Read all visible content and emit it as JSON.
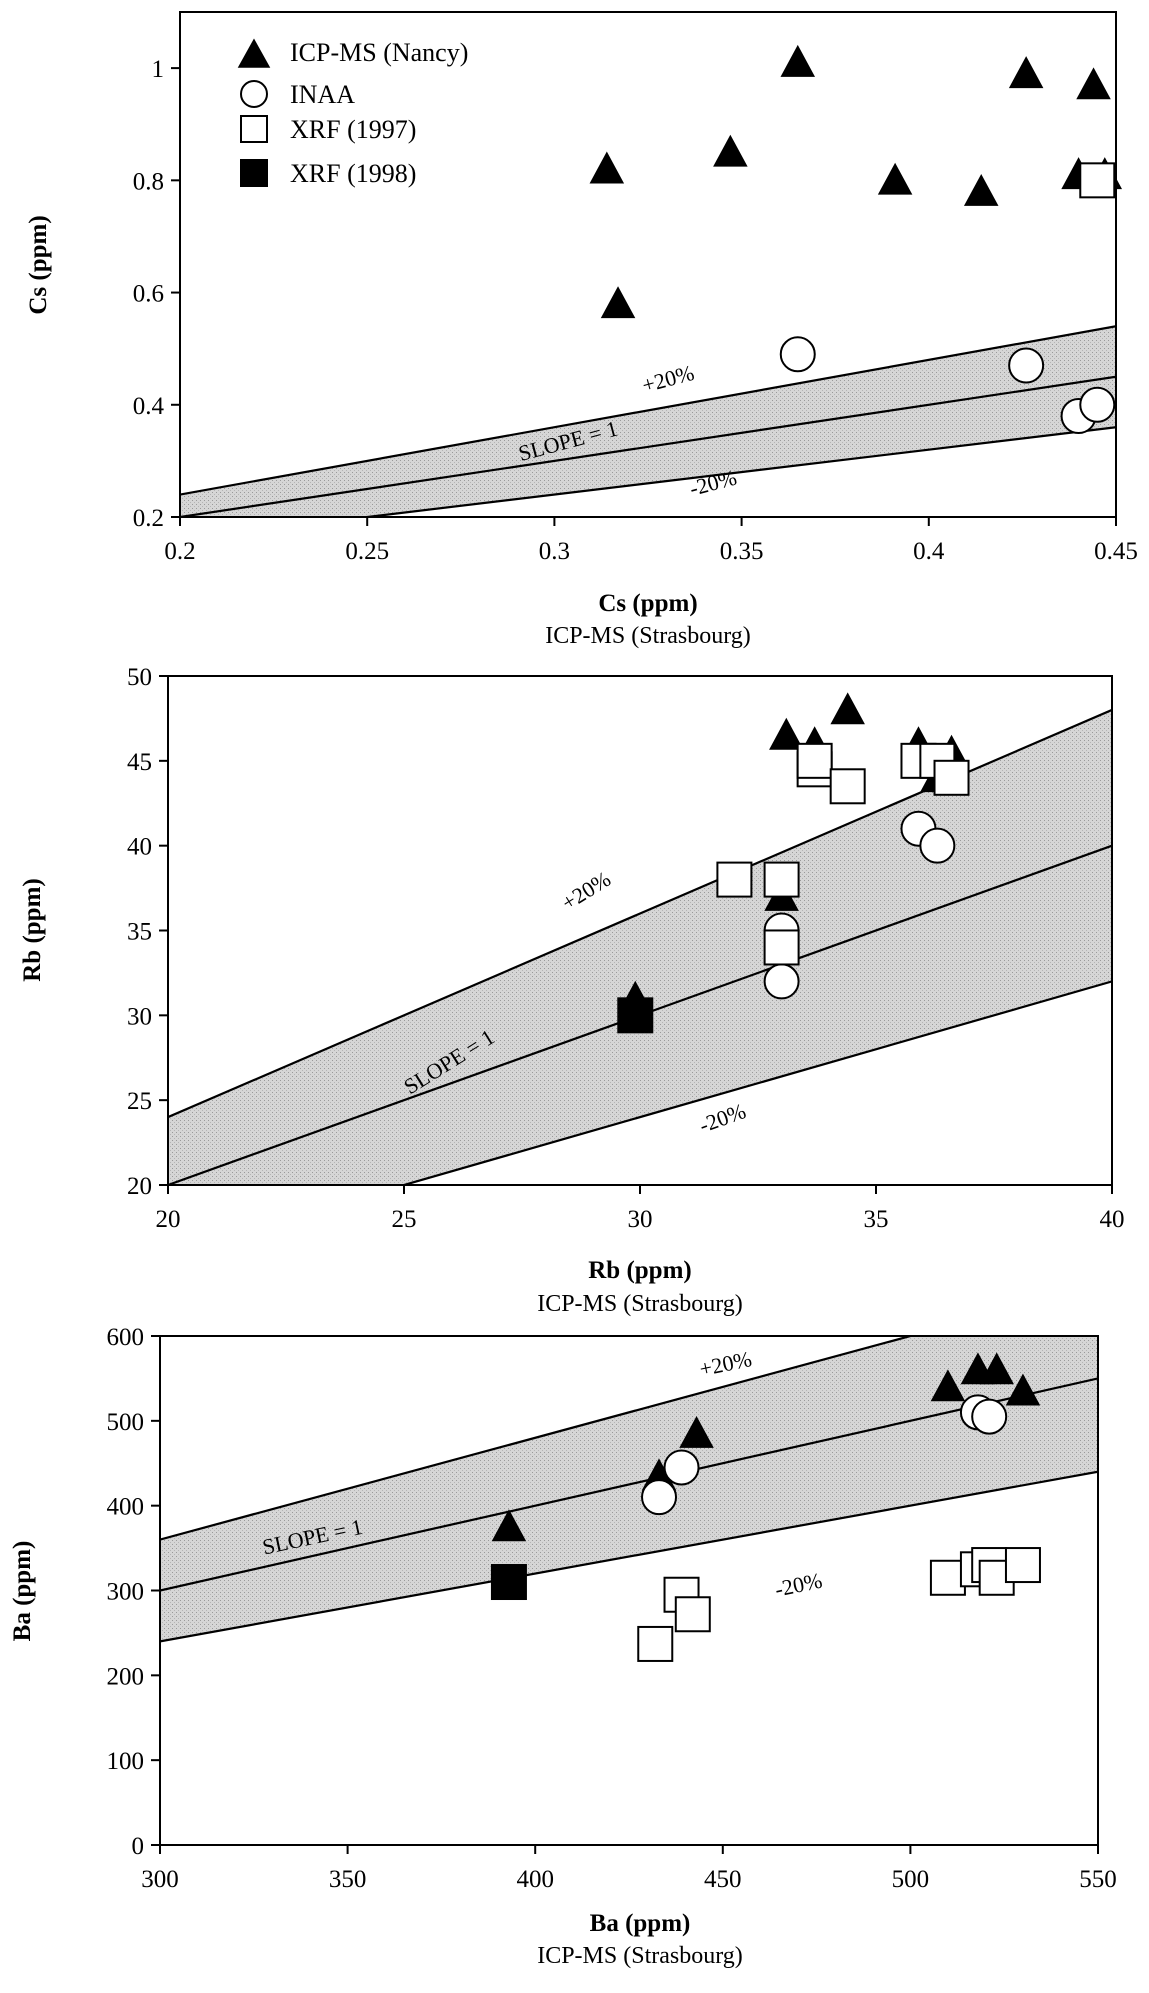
{
  "colors": {
    "band_fill": "#d3d3d3",
    "ink": "#000000",
    "marker_open": "#ffffff"
  },
  "legend": [
    {
      "key": "icpms_nancy",
      "label": "ICP-MS (Nancy)",
      "marker": "filled-triangle"
    },
    {
      "key": "inaa",
      "label": "INAA",
      "marker": "open-circle"
    },
    {
      "key": "xrf1997",
      "label": "XRF (1997)",
      "marker": "open-square"
    },
    {
      "key": "xrf1998",
      "label": "XRF (1998)",
      "marker": "filled-square"
    }
  ],
  "chart_data": [
    {
      "type": "scatter",
      "xlabel": "Cs (ppm)",
      "xsublabel": "ICP-MS (Strasbourg)",
      "ylabel": "Cs (ppm)",
      "xlim": [
        0.2,
        0.45
      ],
      "ylim": [
        0.2,
        1.1
      ],
      "xticks": [
        0.2,
        0.25,
        0.3,
        0.35,
        0.4,
        0.45
      ],
      "xtick_labels": [
        "0.2",
        "0.25",
        "0.3",
        "0.35",
        "0.4",
        "0.45"
      ],
      "yticks": [
        0.2,
        0.4,
        0.6,
        0.8,
        1.0
      ],
      "ytick_labels": [
        "0.2",
        "0.4",
        "0.6",
        "0.8",
        "1"
      ],
      "band_labels": {
        "upper": "+20%",
        "center": "SLOPE = 1",
        "lower": "-20%"
      },
      "series": [
        {
          "key": "icpms_nancy",
          "name": "ICP-MS (Nancy)",
          "points": [
            [
              0.314,
              0.82
            ],
            [
              0.317,
              0.58
            ],
            [
              0.347,
              0.85
            ],
            [
              0.365,
              1.01
            ],
            [
              0.391,
              0.8
            ],
            [
              0.414,
              0.78
            ],
            [
              0.426,
              0.99
            ],
            [
              0.44,
              0.81
            ],
            [
              0.444,
              0.97
            ],
            [
              0.447,
              0.81
            ]
          ]
        },
        {
          "key": "inaa",
          "name": "INAA",
          "points": [
            [
              0.365,
              0.49
            ],
            [
              0.426,
              0.47
            ],
            [
              0.44,
              0.38
            ],
            [
              0.445,
              0.4
            ]
          ]
        },
        {
          "key": "xrf1997",
          "name": "XRF (1997)",
          "points": [
            [
              0.445,
              0.8
            ]
          ]
        },
        {
          "key": "xrf1998",
          "name": "XRF (1998)",
          "points": []
        }
      ]
    },
    {
      "type": "scatter",
      "xlabel": "Rb (ppm)",
      "xsublabel": "ICP-MS (Strasbourg)",
      "ylabel": "Rb (ppm)",
      "xlim": [
        20,
        40
      ],
      "ylim": [
        20,
        50
      ],
      "xticks": [
        20,
        25,
        30,
        35,
        40
      ],
      "xtick_labels": [
        "20",
        "25",
        "30",
        "35",
        "40"
      ],
      "yticks": [
        20,
        25,
        30,
        35,
        40,
        45,
        50
      ],
      "ytick_labels": [
        "20",
        "25",
        "30",
        "35",
        "40",
        "45",
        "50"
      ],
      "band_labels": {
        "upper": "+20%",
        "center": "SLOPE = 1",
        "lower": "-20%"
      },
      "series": [
        {
          "key": "icpms_nancy",
          "name": "ICP-MS (Nancy)",
          "points": [
            [
              29.9,
              31
            ],
            [
              32.0,
              38
            ],
            [
              33.0,
              37
            ],
            [
              33.0,
              35
            ],
            [
              33.0,
              34.5
            ],
            [
              33.1,
              46.5
            ],
            [
              33.7,
              46
            ],
            [
              34.4,
              48
            ],
            [
              35.9,
              46
            ],
            [
              36.3,
              44
            ],
            [
              36.6,
              45.5
            ]
          ]
        },
        {
          "key": "inaa",
          "name": "INAA",
          "points": [
            [
              33.0,
              32
            ],
            [
              33.0,
              35
            ],
            [
              35.9,
              41
            ],
            [
              36.3,
              40
            ]
          ]
        },
        {
          "key": "xrf1997",
          "name": "XRF (1997)",
          "points": [
            [
              32.0,
              38
            ],
            [
              33.0,
              38
            ],
            [
              33.0,
              34
            ],
            [
              33.7,
              44.5
            ],
            [
              33.7,
              45
            ],
            [
              34.4,
              43.5
            ],
            [
              35.9,
              45
            ],
            [
              36.3,
              45
            ],
            [
              36.6,
              44
            ]
          ]
        },
        {
          "key": "xrf1998",
          "name": "XRF (1998)",
          "points": [
            [
              29.9,
              30
            ]
          ]
        }
      ]
    },
    {
      "type": "scatter",
      "xlabel": "Ba (ppm)",
      "xsublabel": "ICP-MS (Strasbourg)",
      "ylabel": "Ba (ppm)",
      "xlim": [
        300,
        550
      ],
      "ylim": [
        0,
        600
      ],
      "xticks": [
        300,
        350,
        400,
        450,
        500,
        550
      ],
      "xtick_labels": [
        "300",
        "350",
        "400",
        "450",
        "500",
        "550"
      ],
      "yticks": [
        0,
        100,
        200,
        300,
        400,
        500,
        600
      ],
      "ytick_labels": [
        "0",
        "100",
        "200",
        "300",
        "400",
        "500",
        "600"
      ],
      "band_labels": {
        "upper": "+20%",
        "center": "SLOPE = 1",
        "lower": "-20%"
      },
      "series": [
        {
          "key": "icpms_nancy",
          "name": "ICP-MS (Nancy)",
          "points": [
            [
              393,
              375
            ],
            [
              433,
              435
            ],
            [
              443,
              485
            ],
            [
              510,
              540
            ],
            [
              518,
              560
            ],
            [
              523,
              560
            ],
            [
              530,
              535
            ]
          ]
        },
        {
          "key": "inaa",
          "name": "INAA",
          "points": [
            [
              433,
              410
            ],
            [
              439,
              445
            ],
            [
              518,
              510
            ],
            [
              521,
              505
            ]
          ]
        },
        {
          "key": "xrf1997",
          "name": "XRF (1997)",
          "points": [
            [
              432,
              237
            ],
            [
              439,
              295
            ],
            [
              442,
              272
            ],
            [
              510,
              315
            ],
            [
              518,
              325
            ],
            [
              521,
              330
            ],
            [
              523,
              315
            ],
            [
              530,
              330
            ]
          ]
        },
        {
          "key": "xrf1998",
          "name": "XRF (1998)",
          "points": [
            [
              393,
              310
            ]
          ]
        }
      ]
    }
  ]
}
